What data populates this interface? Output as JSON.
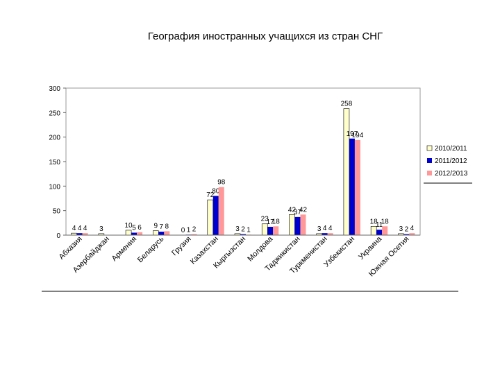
{
  "chart_data": {
    "type": "bar",
    "title": "География иностранных учащихся из стран СНГ",
    "categories": [
      "Абхазия",
      "Азербайджан",
      "Армения",
      "Беларусь",
      "Грузия",
      "Казахстан",
      "Кыргызстан",
      "Молдова",
      "Таджикистан",
      "Туркменистан",
      "Узбекистан",
      "Украина",
      "Южная Осетия"
    ],
    "series": [
      {
        "name": "2010/2011",
        "color": "#ffffcc",
        "values": [
          4,
          3,
          10,
          9,
          0,
          72,
          3,
          23,
          42,
          3,
          258,
          18,
          3
        ]
      },
      {
        "name": "2011/2012",
        "color": "#0000cc",
        "values": [
          4,
          null,
          5,
          7,
          1,
          80,
          2,
          17,
          37,
          4,
          197,
          11,
          2
        ]
      },
      {
        "name": "2012/2013",
        "color": "#ff9999",
        "values": [
          4,
          null,
          6,
          8,
          2,
          98,
          1,
          18,
          42,
          4,
          194,
          18,
          4
        ]
      }
    ],
    "ylim": [
      0,
      300
    ],
    "yticks": [
      0,
      50,
      100,
      150,
      200,
      250,
      300
    ],
    "legend": "right"
  }
}
